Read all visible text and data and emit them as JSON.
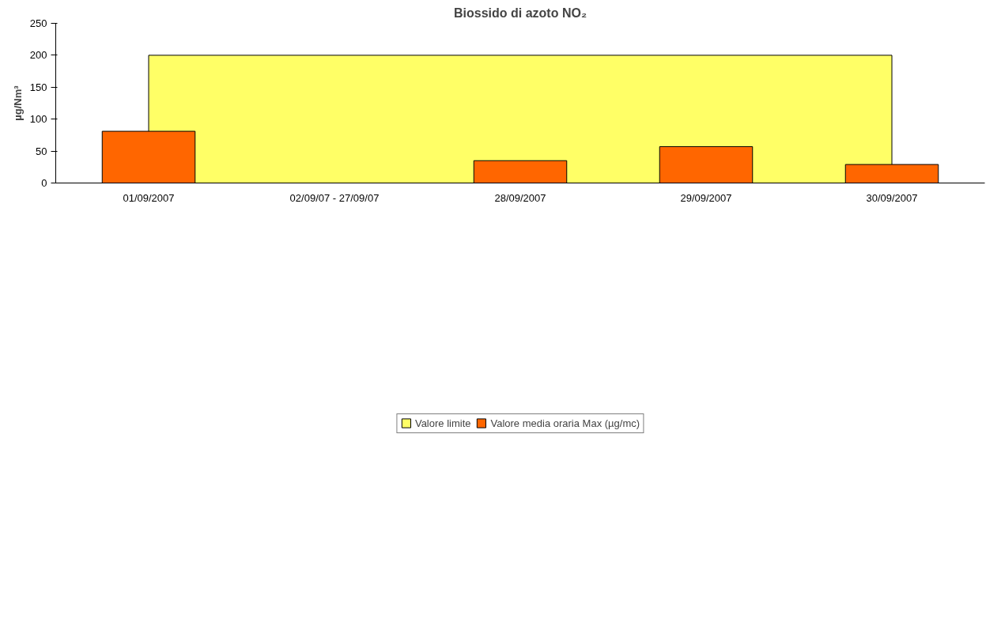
{
  "chart_data": {
    "type": "bar",
    "title": "Biossido di azoto NO₂",
    "ylabel": "µg/Nm³",
    "categories": [
      "01/09/2007",
      "02/09/07 - 27/09/07",
      "28/09/2007",
      "29/09/2007",
      "30/09/2007"
    ],
    "series": [
      {
        "name": "Valore limite",
        "type": "area",
        "color": "#ffff66",
        "values": [
          200,
          200,
          200,
          200,
          200
        ]
      },
      {
        "name": "Valore media oraria Max (µg/mc)",
        "color": "#ff6600",
        "values": [
          81,
          null,
          35,
          57,
          29
        ]
      }
    ],
    "ylim": [
      0,
      250
    ],
    "yticks": [
      0,
      50,
      100,
      150,
      200,
      250
    ],
    "grid": false,
    "legend": "bottom"
  }
}
